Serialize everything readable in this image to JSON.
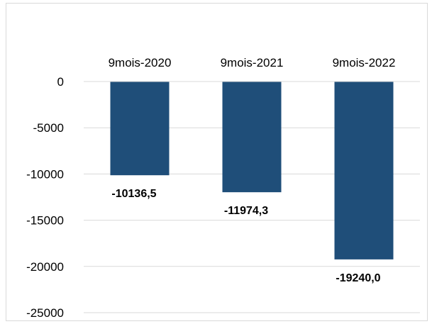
{
  "chart_data": {
    "type": "bar",
    "title": "",
    "xlabel": "",
    "ylabel": "",
    "categories": [
      "9mois-2020",
      "9mois-2021",
      "9mois-2022"
    ],
    "values": [
      -10136.5,
      -11974.3,
      -19240.0
    ],
    "data_labels": [
      "-10136,5",
      "-11974,3",
      "-19240,0"
    ],
    "ylim": [
      -25000,
      0
    ],
    "yticks": [
      0,
      -5000,
      -10000,
      -15000,
      -20000,
      -25000
    ],
    "ytick_labels": [
      "0",
      "-5000",
      "-10000",
      "-15000",
      "-20000",
      "-25000"
    ],
    "grid": true,
    "legend": "none",
    "category_axis_position": "top",
    "bar_color": "#1f4e79",
    "grid_color": "#d9d9d9"
  }
}
